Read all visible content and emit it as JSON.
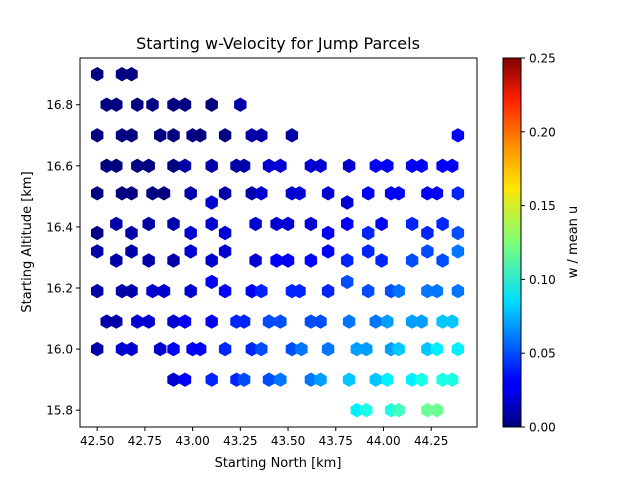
{
  "chart_data": {
    "type": "hexbin",
    "title": "Starting w-Velocity for Jump Parcels",
    "xlabel": "Starting North [km]",
    "ylabel": "Starting Altitude [km]",
    "xlim": [
      42.41,
      44.49
    ],
    "ylim": [
      15.745,
      16.953
    ],
    "xticks": [
      "42.50",
      "42.75",
      "43.00",
      "43.25",
      "43.50",
      "43.75",
      "44.00",
      "44.25"
    ],
    "yticks": [
      "15.8",
      "16.0",
      "16.2",
      "16.4",
      "16.6",
      "16.8"
    ],
    "colorbar": {
      "label": "w / mean u",
      "colormap": "jet",
      "range": [
        0.0,
        0.25
      ],
      "ticks": [
        "0.00",
        "0.05",
        "0.10",
        "0.15",
        "0.20",
        "0.25"
      ]
    },
    "points": [
      [
        42.5,
        16.9,
        0.0
      ],
      [
        42.63,
        16.9,
        0.0
      ],
      [
        42.68,
        16.9,
        0.0
      ],
      [
        42.55,
        16.8,
        0.0
      ],
      [
        42.6,
        16.8,
        0.0
      ],
      [
        42.71,
        16.8,
        0.0
      ],
      [
        42.79,
        16.8,
        0.0
      ],
      [
        42.9,
        16.8,
        0.0
      ],
      [
        42.96,
        16.8,
        0.0
      ],
      [
        43.1,
        16.8,
        0.0
      ],
      [
        43.25,
        16.8,
        0.01
      ],
      [
        42.5,
        16.7,
        0.0
      ],
      [
        42.63,
        16.7,
        0.0
      ],
      [
        42.68,
        16.7,
        0.0
      ],
      [
        42.83,
        16.7,
        0.0
      ],
      [
        42.9,
        16.7,
        0.0
      ],
      [
        43.0,
        16.7,
        0.0
      ],
      [
        43.04,
        16.7,
        0.0
      ],
      [
        43.17,
        16.7,
        0.0
      ],
      [
        43.31,
        16.7,
        0.01
      ],
      [
        43.36,
        16.7,
        0.01
      ],
      [
        43.52,
        16.7,
        0.01
      ],
      [
        44.39,
        16.7,
        0.03
      ],
      [
        42.55,
        16.6,
        0.0
      ],
      [
        42.6,
        16.6,
        0.0
      ],
      [
        42.71,
        16.6,
        0.0
      ],
      [
        42.77,
        16.6,
        0.0
      ],
      [
        42.9,
        16.6,
        0.0
      ],
      [
        42.96,
        16.6,
        0.01
      ],
      [
        43.1,
        16.6,
        0.01
      ],
      [
        43.23,
        16.6,
        0.01
      ],
      [
        43.27,
        16.6,
        0.01
      ],
      [
        43.4,
        16.6,
        0.02
      ],
      [
        43.46,
        16.6,
        0.02
      ],
      [
        43.62,
        16.6,
        0.02
      ],
      [
        43.67,
        16.6,
        0.02
      ],
      [
        43.82,
        16.6,
        0.02
      ],
      [
        43.96,
        16.6,
        0.03
      ],
      [
        44.02,
        16.6,
        0.03
      ],
      [
        44.15,
        16.6,
        0.03
      ],
      [
        44.2,
        16.6,
        0.03
      ],
      [
        44.31,
        16.6,
        0.03
      ],
      [
        44.36,
        16.6,
        0.03
      ],
      [
        42.5,
        16.51,
        0.0
      ],
      [
        42.63,
        16.51,
        0.0
      ],
      [
        42.68,
        16.51,
        0.0
      ],
      [
        42.79,
        16.51,
        0.0
      ],
      [
        42.85,
        16.51,
        0.0
      ],
      [
        42.99,
        16.51,
        0.01
      ],
      [
        43.17,
        16.51,
        0.01
      ],
      [
        43.31,
        16.51,
        0.01
      ],
      [
        43.36,
        16.51,
        0.02
      ],
      [
        43.52,
        16.51,
        0.02
      ],
      [
        43.56,
        16.51,
        0.02
      ],
      [
        43.71,
        16.51,
        0.02
      ],
      [
        43.92,
        16.51,
        0.03
      ],
      [
        44.04,
        16.51,
        0.03
      ],
      [
        44.08,
        16.51,
        0.03
      ],
      [
        44.23,
        16.51,
        0.03
      ],
      [
        44.28,
        16.51,
        0.03
      ],
      [
        44.39,
        16.51,
        0.04
      ],
      [
        43.1,
        16.48,
        0.02
      ],
      [
        43.81,
        16.48,
        0.02
      ],
      [
        42.6,
        16.41,
        0.01
      ],
      [
        42.77,
        16.41,
        0.01
      ],
      [
        42.9,
        16.41,
        0.01
      ],
      [
        43.1,
        16.41,
        0.02
      ],
      [
        43.33,
        16.41,
        0.02
      ],
      [
        43.44,
        16.41,
        0.02
      ],
      [
        43.5,
        16.41,
        0.02
      ],
      [
        43.62,
        16.41,
        0.02
      ],
      [
        43.81,
        16.41,
        0.03
      ],
      [
        43.99,
        16.41,
        0.03
      ],
      [
        44.15,
        16.41,
        0.04
      ],
      [
        44.31,
        16.41,
        0.04
      ],
      [
        42.5,
        16.38,
        0.0
      ],
      [
        42.68,
        16.38,
        0.01
      ],
      [
        42.99,
        16.38,
        0.02
      ],
      [
        43.17,
        16.38,
        0.02
      ],
      [
        43.71,
        16.38,
        0.03
      ],
      [
        43.92,
        16.38,
        0.04
      ],
      [
        44.23,
        16.38,
        0.04
      ],
      [
        44.39,
        16.38,
        0.05
      ],
      [
        42.5,
        16.32,
        0.01
      ],
      [
        42.68,
        16.32,
        0.01
      ],
      [
        42.99,
        16.32,
        0.02
      ],
      [
        43.17,
        16.32,
        0.02
      ],
      [
        43.71,
        16.32,
        0.03
      ],
      [
        43.92,
        16.32,
        0.04
      ],
      [
        44.23,
        16.32,
        0.05
      ],
      [
        44.39,
        16.32,
        0.06
      ],
      [
        42.6,
        16.29,
        0.01
      ],
      [
        42.77,
        16.29,
        0.01
      ],
      [
        42.9,
        16.29,
        0.01
      ],
      [
        43.1,
        16.29,
        0.02
      ],
      [
        43.33,
        16.29,
        0.02
      ],
      [
        43.44,
        16.29,
        0.03
      ],
      [
        43.5,
        16.29,
        0.03
      ],
      [
        43.62,
        16.29,
        0.03
      ],
      [
        43.81,
        16.29,
        0.04
      ],
      [
        43.99,
        16.29,
        0.04
      ],
      [
        44.15,
        16.29,
        0.05
      ],
      [
        44.31,
        16.29,
        0.05
      ],
      [
        43.1,
        16.22,
        0.03
      ],
      [
        43.81,
        16.22,
        0.05
      ],
      [
        42.5,
        16.19,
        0.01
      ],
      [
        42.63,
        16.19,
        0.01
      ],
      [
        42.68,
        16.19,
        0.01
      ],
      [
        42.79,
        16.19,
        0.02
      ],
      [
        42.85,
        16.19,
        0.02
      ],
      [
        42.99,
        16.19,
        0.02
      ],
      [
        43.17,
        16.19,
        0.03
      ],
      [
        43.31,
        16.19,
        0.03
      ],
      [
        43.36,
        16.19,
        0.04
      ],
      [
        43.52,
        16.19,
        0.04
      ],
      [
        43.56,
        16.19,
        0.04
      ],
      [
        43.71,
        16.19,
        0.04
      ],
      [
        43.92,
        16.19,
        0.05
      ],
      [
        44.04,
        16.19,
        0.05
      ],
      [
        44.08,
        16.19,
        0.06
      ],
      [
        44.23,
        16.19,
        0.06
      ],
      [
        44.28,
        16.19,
        0.06
      ],
      [
        44.39,
        16.19,
        0.06
      ],
      [
        42.55,
        16.09,
        0.01
      ],
      [
        42.6,
        16.09,
        0.01
      ],
      [
        42.71,
        16.09,
        0.02
      ],
      [
        42.77,
        16.09,
        0.02
      ],
      [
        42.9,
        16.09,
        0.02
      ],
      [
        42.96,
        16.09,
        0.03
      ],
      [
        43.1,
        16.09,
        0.03
      ],
      [
        43.23,
        16.09,
        0.04
      ],
      [
        43.27,
        16.09,
        0.04
      ],
      [
        43.4,
        16.09,
        0.05
      ],
      [
        43.46,
        16.09,
        0.05
      ],
      [
        43.62,
        16.09,
        0.05
      ],
      [
        43.67,
        16.09,
        0.05
      ],
      [
        43.82,
        16.09,
        0.06
      ],
      [
        43.96,
        16.09,
        0.06
      ],
      [
        44.02,
        16.09,
        0.07
      ],
      [
        44.15,
        16.09,
        0.07
      ],
      [
        44.2,
        16.09,
        0.07
      ],
      [
        44.31,
        16.09,
        0.08
      ],
      [
        44.36,
        16.09,
        0.08
      ],
      [
        42.5,
        16.0,
        0.01
      ],
      [
        42.63,
        16.0,
        0.02
      ],
      [
        42.68,
        16.0,
        0.02
      ],
      [
        42.83,
        16.0,
        0.02
      ],
      [
        42.9,
        16.0,
        0.03
      ],
      [
        43.0,
        16.0,
        0.03
      ],
      [
        43.04,
        16.0,
        0.03
      ],
      [
        43.17,
        16.0,
        0.04
      ],
      [
        43.31,
        16.0,
        0.04
      ],
      [
        43.36,
        16.0,
        0.05
      ],
      [
        43.52,
        16.0,
        0.05
      ],
      [
        43.57,
        16.0,
        0.06
      ],
      [
        43.71,
        16.0,
        0.06
      ],
      [
        43.86,
        16.0,
        0.07
      ],
      [
        43.91,
        16.0,
        0.07
      ],
      [
        44.04,
        16.0,
        0.07
      ],
      [
        44.08,
        16.0,
        0.08
      ],
      [
        44.23,
        16.0,
        0.08
      ],
      [
        44.28,
        16.0,
        0.09
      ],
      [
        44.39,
        16.0,
        0.09
      ],
      [
        42.9,
        15.9,
        0.02
      ],
      [
        42.96,
        15.9,
        0.03
      ],
      [
        43.1,
        15.9,
        0.04
      ],
      [
        43.23,
        15.9,
        0.04
      ],
      [
        43.27,
        15.9,
        0.05
      ],
      [
        43.4,
        15.9,
        0.05
      ],
      [
        43.46,
        15.9,
        0.06
      ],
      [
        43.62,
        15.9,
        0.06
      ],
      [
        43.67,
        15.9,
        0.07
      ],
      [
        43.82,
        15.9,
        0.08
      ],
      [
        43.96,
        15.9,
        0.08
      ],
      [
        44.02,
        15.9,
        0.09
      ],
      [
        44.15,
        15.9,
        0.09
      ],
      [
        44.2,
        15.9,
        0.1
      ],
      [
        44.31,
        15.9,
        0.1
      ],
      [
        44.36,
        15.9,
        0.1
      ],
      [
        43.86,
        15.8,
        0.09
      ],
      [
        43.91,
        15.8,
        0.1
      ],
      [
        44.04,
        15.8,
        0.1
      ],
      [
        44.08,
        15.8,
        0.11
      ],
      [
        44.23,
        15.8,
        0.12
      ],
      [
        44.28,
        15.8,
        0.12
      ]
    ]
  }
}
